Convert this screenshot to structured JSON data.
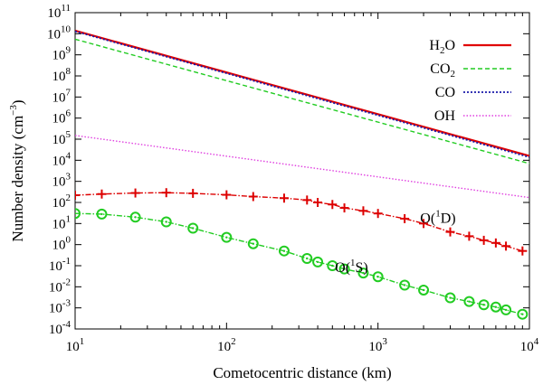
{
  "chart_data": {
    "type": "line",
    "xlabel": "Cometocentric distance (km)",
    "ylabel_parts": [
      "Number density (cm",
      "−3",
      ")"
    ],
    "x_scale": "log",
    "y_scale": "log",
    "xlim": [
      10,
      10000
    ],
    "ylim": [
      0.0001,
      100000000000
    ],
    "x_ticks": [
      {
        "value": 10,
        "base": "10",
        "exp": "1"
      },
      {
        "value": 100,
        "base": "10",
        "exp": "2"
      },
      {
        "value": 1000,
        "base": "10",
        "exp": "3"
      },
      {
        "value": 10000,
        "base": "10",
        "exp": "4"
      }
    ],
    "y_ticks": [
      {
        "value": 0.0001,
        "base": "10",
        "exp": "-4"
      },
      {
        "value": 0.001,
        "base": "10",
        "exp": "-3"
      },
      {
        "value": 0.01,
        "base": "10",
        "exp": "-2"
      },
      {
        "value": 0.1,
        "base": "10",
        "exp": "-1"
      },
      {
        "value": 1,
        "base": "10",
        "exp": "0"
      },
      {
        "value": 10,
        "base": "10",
        "exp": "1"
      },
      {
        "value": 100,
        "base": "10",
        "exp": "2"
      },
      {
        "value": 1000,
        "base": "10",
        "exp": "3"
      },
      {
        "value": 10000,
        "base": "10",
        "exp": "4"
      },
      {
        "value": 100000,
        "base": "10",
        "exp": "5"
      },
      {
        "value": 1000000,
        "base": "10",
        "exp": "6"
      },
      {
        "value": 10000000,
        "base": "10",
        "exp": "7"
      },
      {
        "value": 100000000,
        "base": "10",
        "exp": "8"
      },
      {
        "value": 1000000000,
        "base": "10",
        "exp": "9"
      },
      {
        "value": 10000000000,
        "base": "10",
        "exp": "10"
      },
      {
        "value": 100000000000,
        "base": "10",
        "exp": "11"
      }
    ],
    "legend_position": "top-right",
    "series": [
      {
        "key": "h2o",
        "legend": "H",
        "legend_sub": "2",
        "legend_tail": "O",
        "color": "#e00000",
        "dash": "",
        "width": 2.2,
        "x": [
          10,
          10000
        ],
        "y": [
          14000000000,
          16000
        ]
      },
      {
        "key": "co2",
        "legend": "CO",
        "legend_sub": "2",
        "legend_tail": "",
        "color": "#22cc22",
        "dash": "5,3",
        "width": 1.4,
        "x": [
          10,
          10000
        ],
        "y": [
          5500000000,
          7000
        ]
      },
      {
        "key": "co",
        "legend": "CO",
        "legend_sub": "",
        "legend_tail": "",
        "color": "#1a1aaa",
        "dash": "2,2",
        "width": 1.8,
        "x": [
          10,
          10000
        ],
        "y": [
          13000000000,
          14000
        ]
      },
      {
        "key": "oh",
        "legend": "OH",
        "legend_sub": "",
        "legend_tail": "",
        "color": "#e040e0",
        "dash": "1.5,2",
        "width": 1.4,
        "x": [
          10,
          10000
        ],
        "y": [
          150000,
          170
        ]
      },
      {
        "key": "o1d",
        "color": "#dd0000",
        "dash": "6,2,1.5,2",
        "width": 1.4,
        "marker": "plus",
        "x": [
          10,
          15,
          25,
          40,
          60,
          100,
          150,
          240,
          340,
          400,
          500,
          600,
          800,
          1000,
          1500,
          2000,
          3000,
          4000,
          5000,
          6000,
          7000,
          9000
        ],
        "y": [
          220,
          250,
          280,
          290,
          270,
          230,
          190,
          160,
          130,
          100,
          80,
          55,
          40,
          30,
          17,
          10,
          4,
          2.5,
          1.6,
          1.2,
          0.85,
          0.5
        ]
      },
      {
        "key": "o1s",
        "color": "#22cc22",
        "dash": "6,2,1.5,2",
        "width": 1.4,
        "marker": "circle",
        "x": [
          10,
          15,
          25,
          40,
          60,
          100,
          150,
          240,
          340,
          400,
          500,
          600,
          800,
          1000,
          1500,
          2000,
          3000,
          4000,
          5000,
          6000,
          7000,
          9000
        ],
        "y": [
          30,
          28,
          20,
          12,
          6,
          2.2,
          1.1,
          0.5,
          0.22,
          0.15,
          0.1,
          0.07,
          0.045,
          0.03,
          0.012,
          0.007,
          0.003,
          0.002,
          0.0014,
          0.0011,
          0.0008,
          0.0005
        ]
      }
    ],
    "annotations": [
      {
        "key": "o1d",
        "prefix": "O(",
        "sup": "1",
        "suffix": "D)",
        "x": 1900,
        "y": 11
      },
      {
        "key": "o1s",
        "prefix": "O(",
        "sup": "1",
        "suffix": "S)",
        "x": 520,
        "y": 0.05
      }
    ]
  }
}
